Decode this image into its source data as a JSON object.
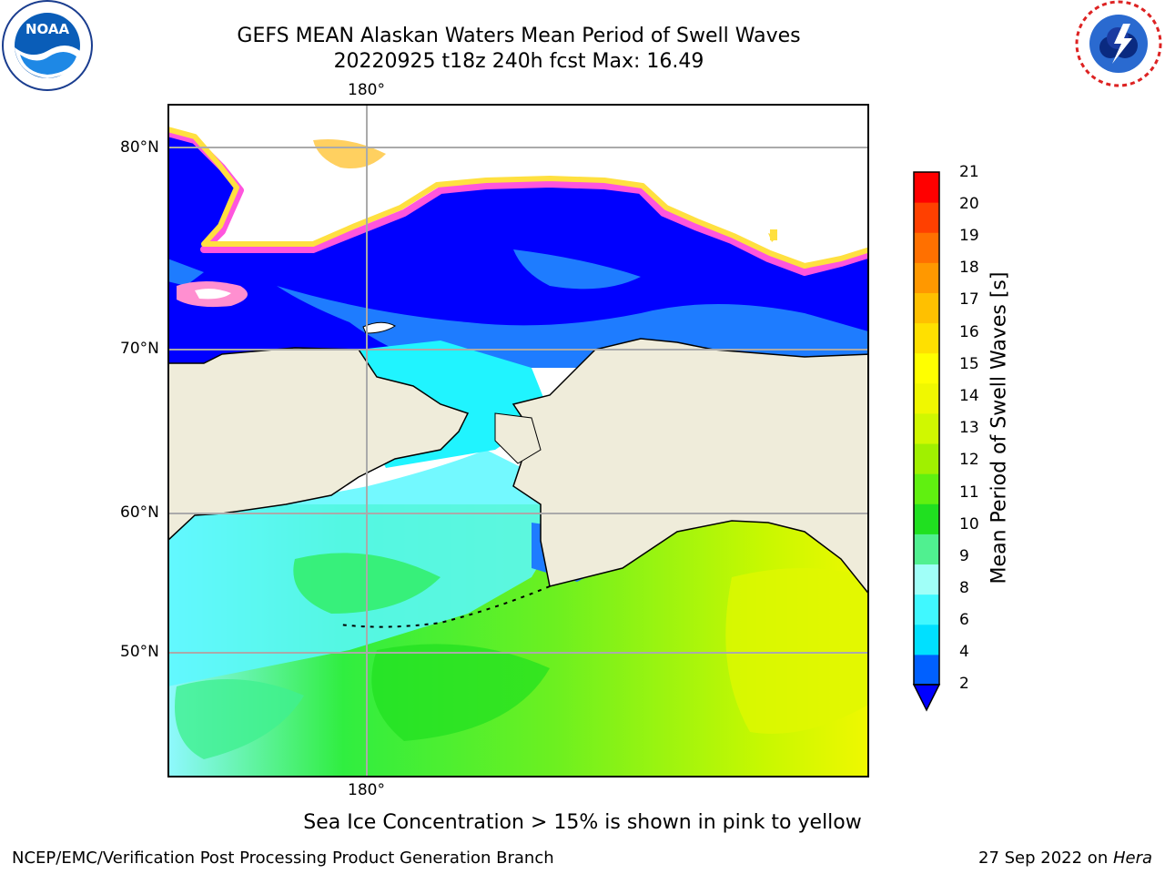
{
  "header": {
    "title_line1": "GEFS MEAN Alaskan Waters Mean Period of Swell Waves",
    "title_line2": "20220925 t18z 240h fcst   Max: 16.49"
  },
  "logos": {
    "noaa": {
      "text": "NOAA",
      "ring": "NATIONAL OCEANIC AND ATMOSPHERIC ADMINISTRATION · U.S. DEPARTMENT OF COMMERCE"
    },
    "nws": {
      "ring": "NATIONAL WEATHER SERVICE"
    }
  },
  "map": {
    "lon_label_top": "180°",
    "lon_label_bottom": "180°",
    "lat_labels": [
      "80°N",
      "70°N",
      "60°N",
      "50°N"
    ],
    "colors": {
      "ocean_short": "#0000ff",
      "land": "#efecda",
      "ice_edge_pink": "#ff55dd",
      "ice_yellow": "#ffe040"
    }
  },
  "colorbar": {
    "label": "Mean Period of Swell Waves [s]",
    "ticks": [
      "21",
      "20",
      "19",
      "18",
      "17",
      "16",
      "15",
      "14",
      "13",
      "12",
      "11",
      "10",
      "9",
      "8",
      "6",
      "4",
      "2"
    ],
    "colors": [
      "#0060ff",
      "#00e0ff",
      "#40f8ff",
      "#a0fff8",
      "#50f090",
      "#20e020",
      "#60f010",
      "#a0f000",
      "#d0f800",
      "#f0f800",
      "#ffff00",
      "#ffe000",
      "#ffc000",
      "#ff9800",
      "#ff7000",
      "#ff4000",
      "#ff0000"
    ],
    "extend_color": "#0000ff"
  },
  "caption": "Sea Ice Concentration > 15% is shown in pink to yellow",
  "footer": {
    "left": "NCEP/EMC/Verification Post Processing Product Generation Branch",
    "right_date": "27 Sep 2022 on ",
    "right_host": "Hera"
  }
}
